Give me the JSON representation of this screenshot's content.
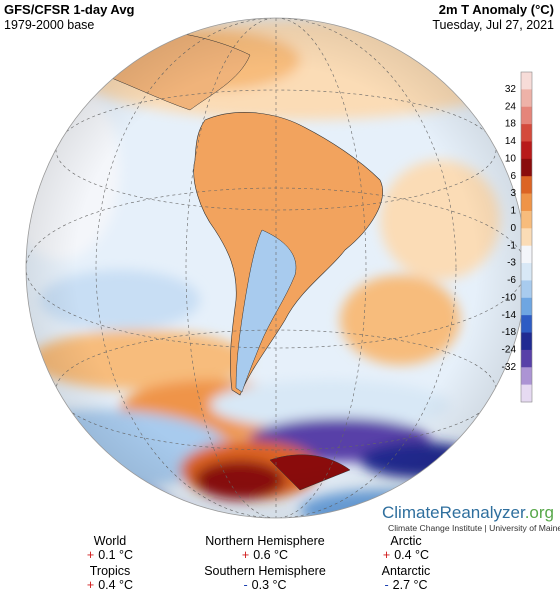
{
  "header": {
    "title": "GFS/CFSR 1-day Avg",
    "subtitle": "1979-2000 base",
    "variable": "2m T Anomaly (°C)",
    "date": "Tuesday, Jul 27, 2021"
  },
  "colorbar": {
    "labels": [
      32,
      24,
      18,
      14,
      10,
      6,
      3,
      1,
      0,
      -1,
      -3,
      -6,
      -10,
      -14,
      -18,
      -24,
      -32
    ],
    "colors": [
      "#f7dcd8",
      "#eeb2a8",
      "#e5857a",
      "#d44a3c",
      "#b81a1a",
      "#8a0c0c",
      "#dc6424",
      "#ef9448",
      "#f7bc7c",
      "#fbdcb6",
      "#f4f6fa",
      "#d8e8f6",
      "#a8cbee",
      "#6ea6e2",
      "#2e5cc4",
      "#202a92",
      "#5840a8",
      "#ac94d4",
      "#e6daf2"
    ]
  },
  "logo": {
    "name": "ClimateReanalyzer",
    "suffix": ".org",
    "credit": "Climate Change Institute | University of Maine"
  },
  "stats": [
    {
      "label": "World",
      "sign": "+",
      "value": "0.1 °C"
    },
    {
      "label": "Northern Hemisphere",
      "sign": "+",
      "value": "0.6 °C"
    },
    {
      "label": "Arctic",
      "sign": "+",
      "value": "0.4 °C"
    },
    {
      "label": "Tropics",
      "sign": "+",
      "value": "0.4 °C"
    },
    {
      "label": "Southern Hemisphere",
      "sign": "-",
      "value": "0.3 °C"
    },
    {
      "label": "Antarctic",
      "sign": "-",
      "value": "2.7 °C"
    }
  ]
}
